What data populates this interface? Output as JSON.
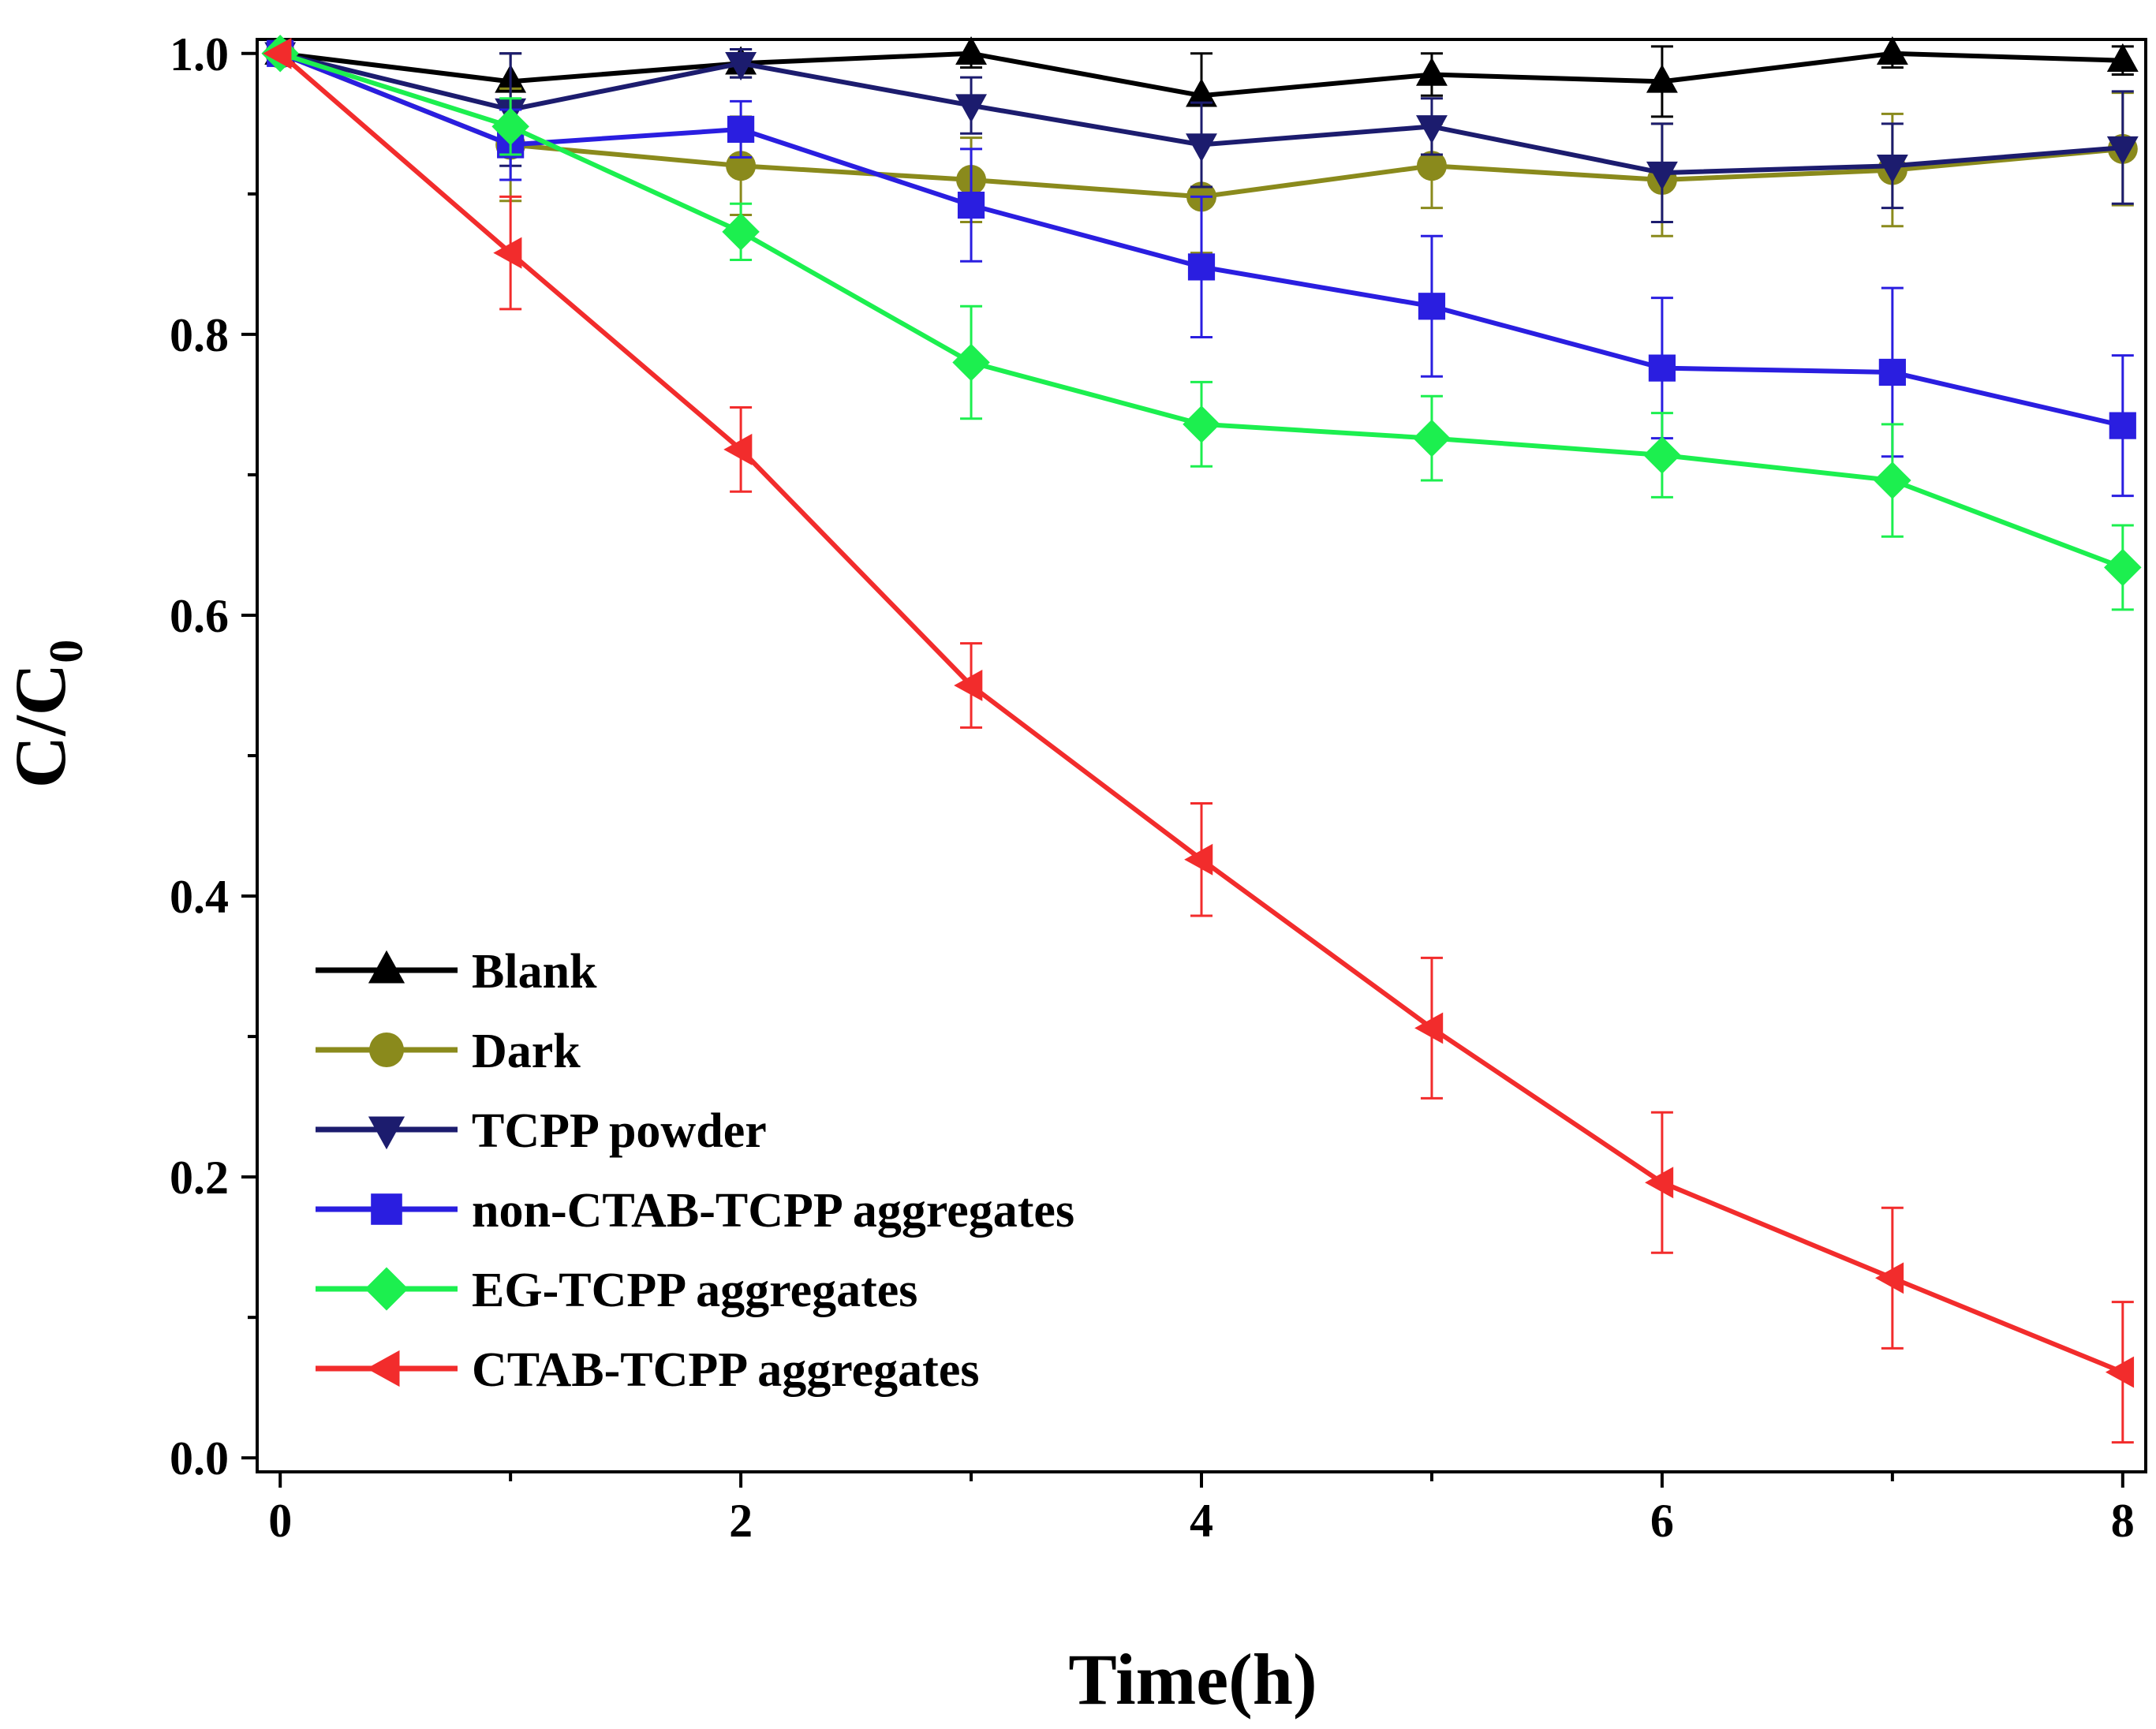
{
  "chart_data": {
    "type": "line",
    "title": "",
    "xlabel": "Time(h)",
    "ylabel_main": "C/C",
    "ylabel_sub": "0",
    "xlim": [
      -0.1,
      8.1
    ],
    "ylim": [
      -0.01,
      1.01
    ],
    "x_ticks": [
      0,
      2,
      4,
      6,
      8
    ],
    "x_tick_labels": [
      "0",
      "2",
      "4",
      "6",
      "8"
    ],
    "x_minor_ticks": [
      1,
      3,
      5,
      7
    ],
    "y_ticks": [
      0.0,
      0.2,
      0.4,
      0.6,
      0.8,
      1.0
    ],
    "y_tick_labels": [
      "0.0",
      "0.2",
      "0.4",
      "0.6",
      "0.8",
      "1.0"
    ],
    "y_minor_ticks": [
      0.1,
      0.3,
      0.5,
      0.7,
      0.9
    ],
    "x": [
      0,
      1,
      2,
      3,
      4,
      5,
      6,
      7,
      8
    ],
    "legend_position": "lower-left",
    "series": [
      {
        "name": "Blank",
        "color": "#000000",
        "marker": "triangle-up",
        "values": [
          1.0,
          0.98,
          0.993,
          1.0,
          0.97,
          0.985,
          0.98,
          1.0,
          0.995
        ],
        "errors": [
          0,
          0.02,
          0.01,
          0.01,
          0.03,
          0.015,
          0.025,
          0.01,
          0.01
        ]
      },
      {
        "name": "Dark",
        "color": "#8a8a1c",
        "marker": "circle",
        "values": [
          1.0,
          0.935,
          0.92,
          0.91,
          0.898,
          0.92,
          0.91,
          0.917,
          0.932
        ],
        "errors": [
          0,
          0.04,
          0.035,
          0.03,
          0.04,
          0.03,
          0.04,
          0.04,
          0.04
        ]
      },
      {
        "name": "TCPP powder",
        "color": "#1c1c6e",
        "marker": "triangle-down",
        "values": [
          1.0,
          0.96,
          0.993,
          0.963,
          0.935,
          0.948,
          0.915,
          0.92,
          0.933
        ],
        "errors": [
          0,
          0.04,
          0.01,
          0.02,
          0.03,
          0.02,
          0.035,
          0.03,
          0.04
        ]
      },
      {
        "name": "non-CTAB-TCPP aggregates",
        "color": "#2a1ee0",
        "marker": "square",
        "values": [
          1.0,
          0.935,
          0.946,
          0.892,
          0.848,
          0.82,
          0.776,
          0.773,
          0.735
        ],
        "errors": [
          0,
          0.025,
          0.02,
          0.04,
          0.05,
          0.05,
          0.05,
          0.06,
          0.05
        ]
      },
      {
        "name": "EG-TCPP aggregates",
        "color": "#1cef4f",
        "marker": "diamond",
        "values": [
          1.0,
          0.948,
          0.873,
          0.78,
          0.736,
          0.726,
          0.714,
          0.696,
          0.634
        ],
        "errors": [
          0,
          0.02,
          0.02,
          0.04,
          0.03,
          0.03,
          0.03,
          0.04,
          0.03
        ]
      },
      {
        "name": "CTAB-TCPP aggregates",
        "color": "#f22c2c",
        "marker": "triangle-left",
        "values": [
          1.0,
          0.858,
          0.718,
          0.55,
          0.426,
          0.306,
          0.196,
          0.128,
          0.061
        ],
        "errors": [
          0,
          0.04,
          0.03,
          0.03,
          0.04,
          0.05,
          0.05,
          0.05,
          0.05
        ]
      }
    ]
  }
}
